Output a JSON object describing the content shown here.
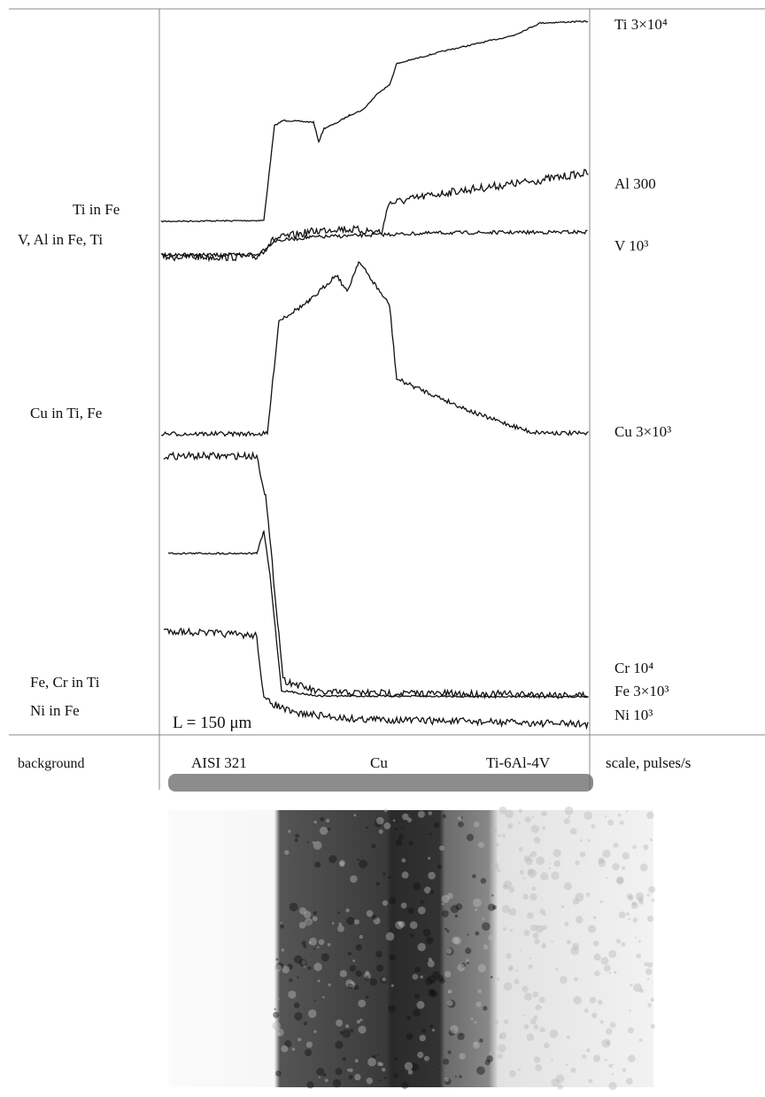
{
  "left_labels": [
    "Ti in Fe",
    "V, Al in Fe, Ti",
    "Cu in Ti, Fe",
    "Fe, Cr in Ti",
    "Ni in Fe"
  ],
  "scale_note": "L = 150 μm",
  "right_labels": [
    "Ti 3×10⁴",
    "Al 300",
    "V 10³",
    "Cu 3×10³",
    "Cr 10⁴",
    "Fe 3×10³",
    "Ni 10³"
  ],
  "bottom_row": [
    "background",
    "AISI 321",
    "Cu",
    "Ti-6Al-4V",
    "scale, pulses/s"
  ]
}
